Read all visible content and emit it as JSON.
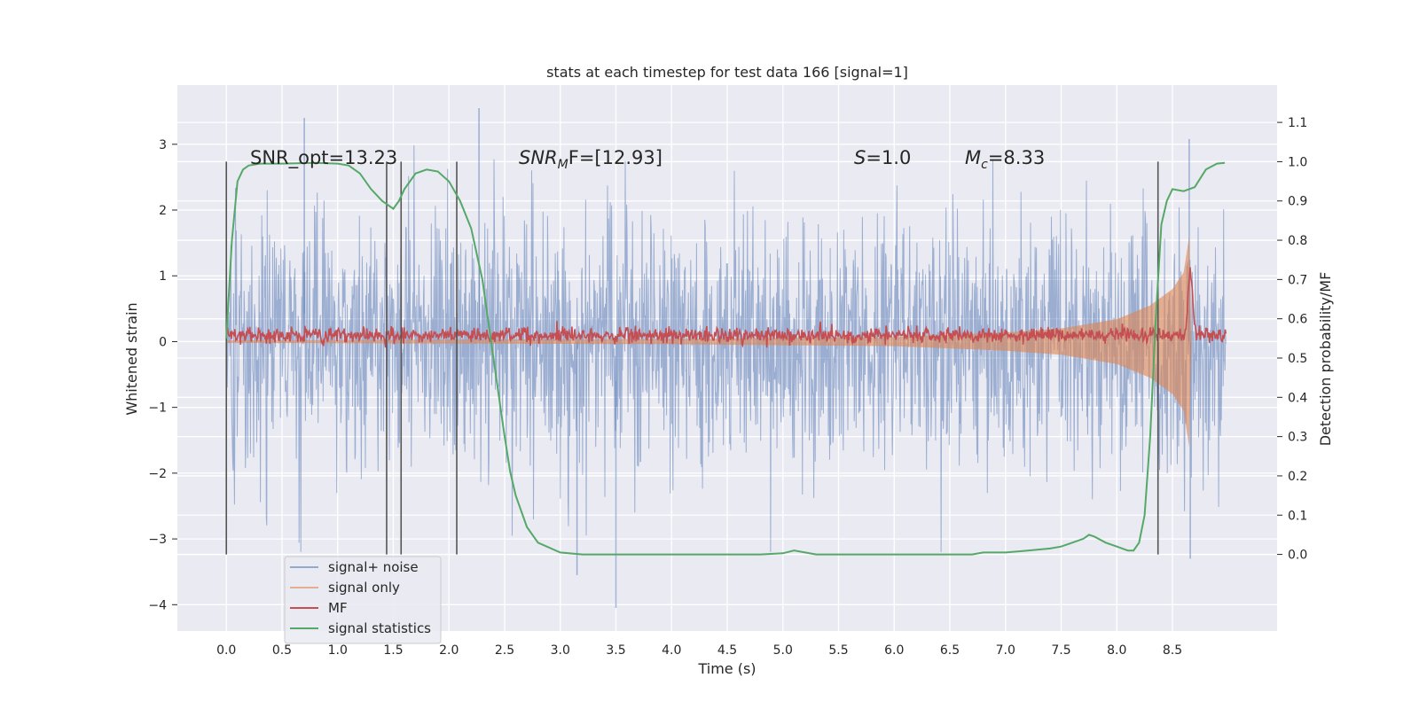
{
  "chart_data": {
    "type": "line",
    "title": "stats at each timestep for test data 166 [signal=1]",
    "xlabel": "Time (s)",
    "ylabel": "Whitened strain",
    "y2label": "Detection probability/MF",
    "xlim": [
      -0.44,
      9.44
    ],
    "ylim": [
      -4.4,
      3.9
    ],
    "y2lim": [
      -0.195,
      1.195
    ],
    "xticks": [
      "0.0",
      "0.5",
      "1.0",
      "1.5",
      "2.0",
      "2.5",
      "3.0",
      "3.5",
      "4.0",
      "4.5",
      "5.0",
      "5.5",
      "6.0",
      "6.5",
      "7.0",
      "7.5",
      "8.0",
      "8.5"
    ],
    "yticks": [
      "3",
      "2",
      "1",
      "0",
      "−1",
      "−2",
      "−3",
      "−4"
    ],
    "y2ticks": [
      "1.1",
      "1.0",
      "0.9",
      "0.8",
      "0.7",
      "0.6",
      "0.5",
      "0.4",
      "0.3",
      "0.2",
      "0.1",
      "0.0"
    ],
    "grid": true,
    "legend_position": "lower-left",
    "annotations": {
      "snr_opt": "SNR_opt=13.23",
      "snr_mf_base": "SNR",
      "snr_mf_sub": "M",
      "snr_mf_rest": "F=[12.93]",
      "s_label": "S",
      "s_value": "=1.0",
      "mc_label": "M",
      "mc_sub": "c",
      "mc_value": "=8.33"
    },
    "vertical_lines_x": [
      0.0,
      1.44,
      1.57,
      2.07,
      8.37
    ],
    "series": [
      {
        "name": "signal+ noise",
        "color": "#4c72b0",
        "description": "whitened noise, approx amplitude 1.0 std, spans 0 to 8.98 s",
        "x_range": [
          0.0,
          8.98
        ],
        "typical_band": [
          -1.5,
          1.5
        ],
        "peaks": [
          [
            0.7,
            3.4
          ],
          [
            2.27,
            3.55
          ],
          [
            3.5,
            -4.05
          ],
          [
            3.15,
            -3.55
          ],
          [
            8.65,
            3.08
          ],
          [
            8.66,
            -3.3
          ]
        ]
      },
      {
        "name": "signal only",
        "color": "#dd8452",
        "description": "chirp envelope growing toward merger",
        "envelope": [
          [
            0.0,
            0.02
          ],
          [
            4.0,
            0.04
          ],
          [
            6.0,
            0.07
          ],
          [
            7.0,
            0.14
          ],
          [
            7.5,
            0.2
          ],
          [
            8.0,
            0.34
          ],
          [
            8.3,
            0.55
          ],
          [
            8.5,
            0.8
          ],
          [
            8.6,
            1.05
          ],
          [
            8.65,
            1.6
          ],
          [
            8.67,
            0.0
          ]
        ]
      },
      {
        "name": "MF",
        "color": "#c44e52",
        "description": "matched-filter output, approx 0.1 baseline with peak at merger",
        "x_range": [
          0.0,
          8.98
        ],
        "baseline": 0.1,
        "peak": [
          8.66,
          1.05
        ]
      },
      {
        "name": "signal statistics",
        "color": "#55a868",
        "axis": "right",
        "x": [
          0.0,
          0.05,
          0.1,
          0.15,
          0.2,
          0.3,
          0.5,
          0.8,
          1.0,
          1.1,
          1.2,
          1.3,
          1.4,
          1.5,
          1.55,
          1.6,
          1.7,
          1.8,
          1.9,
          2.0,
          2.1,
          2.2,
          2.3,
          2.4,
          2.45,
          2.5,
          2.55,
          2.6,
          2.7,
          2.8,
          3.0,
          3.2,
          3.5,
          4.0,
          4.5,
          4.8,
          5.0,
          5.1,
          5.3,
          5.5,
          6.0,
          6.5,
          6.7,
          6.8,
          7.0,
          7.2,
          7.4,
          7.5,
          7.6,
          7.7,
          7.75,
          7.8,
          7.9,
          8.0,
          8.1,
          8.15,
          8.2,
          8.25,
          8.3,
          8.35,
          8.4,
          8.45,
          8.5,
          8.6,
          8.7,
          8.8,
          8.9,
          8.97
        ],
        "y": [
          0.55,
          0.8,
          0.95,
          0.98,
          0.99,
          0.995,
          0.995,
          0.997,
          0.995,
          0.99,
          0.97,
          0.93,
          0.9,
          0.88,
          0.9,
          0.93,
          0.97,
          0.98,
          0.975,
          0.95,
          0.9,
          0.83,
          0.7,
          0.5,
          0.4,
          0.3,
          0.21,
          0.15,
          0.07,
          0.03,
          0.005,
          0.0,
          0.0,
          0.0,
          0.0,
          0.0,
          0.003,
          0.01,
          0.0,
          0.0,
          0.0,
          0.0,
          0.0,
          0.005,
          0.005,
          0.01,
          0.015,
          0.02,
          0.03,
          0.04,
          0.05,
          0.045,
          0.03,
          0.02,
          0.01,
          0.01,
          0.03,
          0.1,
          0.3,
          0.6,
          0.84,
          0.9,
          0.93,
          0.925,
          0.935,
          0.98,
          0.995,
          0.997
        ]
      }
    ]
  }
}
